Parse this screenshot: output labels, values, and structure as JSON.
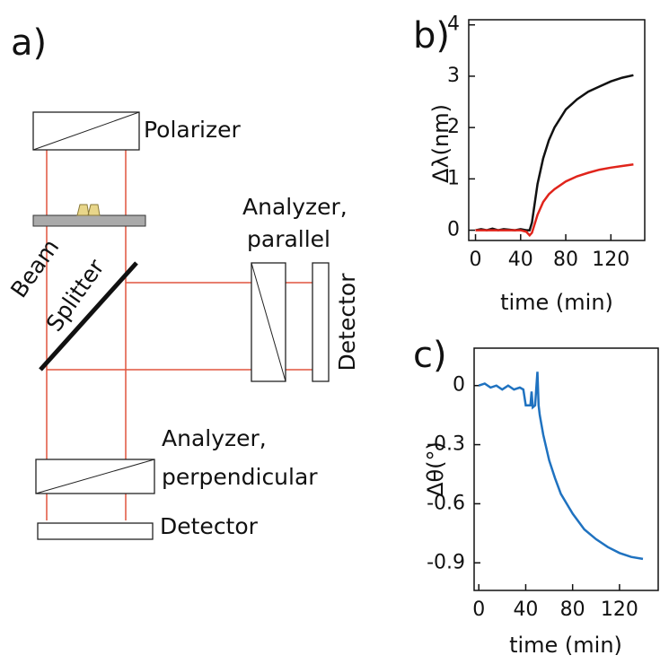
{
  "diagram": {
    "panel_label": "a)",
    "polarizer": "Polarizer",
    "beam": "Beam",
    "splitter": "Splitter",
    "analyzer_parallel": [
      "Analyzer,",
      "parallel"
    ],
    "detector_parallel": "Detector",
    "analyzer_perpendicular": [
      "Analyzer,",
      "perpendicular"
    ],
    "detector_perpendicular": "Detector"
  },
  "chart_data": [
    {
      "type": "line",
      "title": "b)",
      "xlabel": "time (min)",
      "ylabel": "Δλ(nm)",
      "x": [
        0,
        5,
        10,
        15,
        20,
        25,
        30,
        35,
        40,
        45,
        48,
        50,
        55,
        60,
        65,
        70,
        80,
        90,
        100,
        110,
        120,
        130,
        140
      ],
      "series": [
        {
          "color": "#111111",
          "values": [
            0,
            0.02,
            0,
            0.03,
            0,
            0.02,
            0.01,
            0,
            0.02,
            0,
            0,
            0.15,
            0.9,
            1.4,
            1.75,
            2.0,
            2.35,
            2.55,
            2.7,
            2.8,
            2.9,
            2.97,
            3.02
          ]
        },
        {
          "color": "#e0241b",
          "values": [
            0,
            0,
            0,
            0,
            0,
            0,
            0,
            0,
            0,
            -0.03,
            -0.1,
            -0.05,
            0.3,
            0.55,
            0.7,
            0.8,
            0.95,
            1.05,
            1.12,
            1.18,
            1.22,
            1.25,
            1.28
          ]
        }
      ],
      "xlim": [
        -6,
        150
      ],
      "ylim": [
        -0.2,
        4.1
      ],
      "xticks": [
        0,
        40,
        80,
        120
      ],
      "yticks": [
        0,
        1,
        2,
        3,
        4
      ]
    },
    {
      "type": "line",
      "title": "c)",
      "xlabel": "time (min)",
      "ylabel": "Δθ(°)",
      "x": [
        0,
        5,
        10,
        15,
        20,
        25,
        30,
        35,
        38,
        40,
        44,
        45,
        46,
        48,
        50,
        51,
        52,
        55,
        60,
        65,
        70,
        80,
        90,
        100,
        110,
        120,
        130,
        140
      ],
      "series": [
        {
          "color": "#1f72c0",
          "values": [
            0,
            0.01,
            -0.01,
            0,
            -0.02,
            0,
            -0.02,
            -0.01,
            -0.02,
            -0.1,
            -0.1,
            -0.03,
            -0.11,
            -0.1,
            0.07,
            -0.1,
            -0.15,
            -0.25,
            -0.38,
            -0.47,
            -0.55,
            -0.65,
            -0.73,
            -0.78,
            -0.82,
            -0.85,
            -0.87,
            -0.88
          ]
        }
      ],
      "xlim": [
        -4,
        153
      ],
      "ylim": [
        -1.04,
        0.19
      ],
      "xticks": [
        0,
        40,
        80,
        120
      ],
      "yticks": [
        0,
        -0.3,
        -0.6,
        -0.9
      ]
    }
  ]
}
